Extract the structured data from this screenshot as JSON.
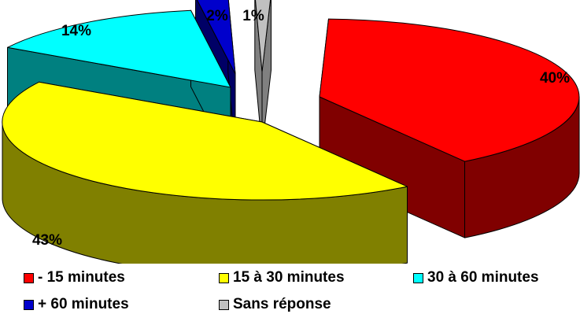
{
  "chart_data": {
    "type": "pie",
    "categories": [
      "- 15 minutes",
      "15 à 30 minutes",
      "30 à 60 minutes",
      "+ 60 minutes",
      "Sans réponse"
    ],
    "values": [
      40,
      43,
      14,
      2,
      1
    ],
    "data_labels": [
      "40%",
      "43%",
      "14%",
      "2%",
      "1%"
    ],
    "colors": [
      "#FF0000",
      "#FFFF00",
      "#00FFFF",
      "#0000CC",
      "#C0C0C0"
    ],
    "side_colors": [
      "#800000",
      "#808000",
      "#008080",
      "#000066",
      "#808080"
    ],
    "style": "3d-exploded",
    "legend_position": "bottom"
  }
}
